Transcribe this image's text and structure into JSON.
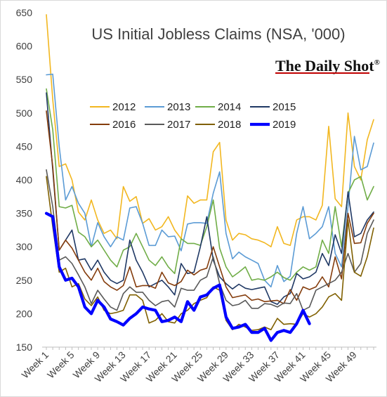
{
  "chart_data": {
    "type": "line",
    "title": "US Initial Jobless Claims (NSA, '000)",
    "brand": "The Daily Shot",
    "brand_mark": "®",
    "xlabel": "",
    "ylabel": "",
    "ylim": [
      150,
      650
    ],
    "y_ticks": [
      150,
      200,
      250,
      300,
      350,
      400,
      450,
      500,
      550,
      600,
      650
    ],
    "x_tick_labels": [
      "Week 1",
      "Week 5",
      "Week 9",
      "Week 13",
      "Week 17",
      "Week 21",
      "Week 25",
      "Week 29",
      "Week 33",
      "Week 37",
      "Week 41",
      "Week 45",
      "Week 49"
    ],
    "x_tick_weeks": [
      1,
      5,
      9,
      13,
      17,
      21,
      25,
      29,
      33,
      37,
      41,
      45,
      49
    ],
    "weeks": 52,
    "grid": false,
    "legend_placement": "top-center",
    "series": [
      {
        "name": "2012",
        "color": "#f2b720",
        "width": 1.6,
        "values": [
          647,
          520,
          420,
          424,
          400,
          352,
          340,
          370,
          340,
          320,
          325,
          312,
          390,
          368,
          375,
          335,
          342,
          325,
          330,
          345,
          325,
          312,
          376,
          365,
          370,
          370,
          442,
          456,
          340,
          310,
          320,
          318,
          312,
          310,
          306,
          300,
          330,
          305,
          302,
          340,
          345,
          345,
          340,
          362,
          480,
          372,
          360,
          500,
          420,
          400,
          460,
          490
        ]
      },
      {
        "name": "2013",
        "color": "#5b9bd5",
        "width": 1.6,
        "values": [
          557,
          558,
          450,
          370,
          390,
          365,
          350,
          300,
          336,
          315,
          300,
          315,
          310,
          358,
          360,
          335,
          302,
          302,
          325,
          315,
          316,
          294,
          334,
          336,
          336,
          335,
          380,
          412,
          320,
          282,
          292,
          285,
          280,
          275,
          250,
          240,
          272,
          248,
          256,
          320,
          360,
          312,
          320,
          330,
          360,
          290,
          270,
          360,
          465,
          415,
          420,
          455
        ]
      },
      {
        "name": "2014",
        "color": "#70ad47",
        "width": 1.6,
        "values": [
          536,
          475,
          360,
          358,
          362,
          322,
          315,
          300,
          310,
          295,
          280,
          270,
          295,
          300,
          320,
          300,
          280,
          272,
          285,
          270,
          260,
          312,
          305,
          305,
          302,
          330,
          370,
          298,
          270,
          255,
          262,
          270,
          250,
          252,
          250,
          255,
          262,
          254,
          250,
          262,
          270,
          265,
          270,
          310,
          290,
          360,
          300,
          380,
          400,
          405,
          370,
          390
        ]
      },
      {
        "name": "2015",
        "color": "#1f3864",
        "width": 1.6,
        "values": [
          530,
          415,
          295,
          310,
          325,
          280,
          282,
          265,
          280,
          262,
          250,
          245,
          250,
          310,
          280,
          262,
          240,
          245,
          250,
          240,
          228,
          275,
          260,
          262,
          300,
          345,
          280,
          255,
          245,
          237,
          244,
          238,
          236,
          238,
          240,
          218,
          214,
          225,
          230,
          260,
          252,
          255,
          262,
          290,
          272,
          318,
          290,
          382,
          315,
          320,
          340,
          352
        ]
      },
      {
        "name": "2016",
        "color": "#843c0c",
        "width": 1.6,
        "values": [
          503,
          420,
          295,
          310,
          298,
          280,
          262,
          250,
          268,
          248,
          240,
          235,
          242,
          270,
          240,
          242,
          242,
          238,
          262,
          246,
          242,
          248,
          265,
          258,
          265,
          268,
          300,
          270,
          240,
          224,
          226,
          228,
          220,
          222,
          218,
          219,
          220,
          215,
          236,
          220,
          240,
          236,
          240,
          255,
          240,
          285,
          252,
          350,
          305,
          306,
          335,
          350
        ]
      },
      {
        "name": "2017",
        "color": "#595959",
        "width": 1.6,
        "values": [
          415,
          360,
          280,
          285,
          275,
          258,
          240,
          215,
          235,
          222,
          210,
          205,
          230,
          240,
          232,
          232,
          220,
          212,
          218,
          220,
          210,
          238,
          235,
          235,
          250,
          255,
          285,
          245,
          220,
          212,
          214,
          220,
          208,
          208,
          215,
          214,
          210,
          216,
          215,
          230,
          205,
          210,
          235,
          240,
          245,
          250,
          262,
          290,
          262,
          275,
          320,
          340
        ]
      },
      {
        "name": "2018",
        "color": "#806000",
        "width": 1.6,
        "values": [
          405,
          330,
          262,
          268,
          240,
          245,
          222,
          212,
          225,
          205,
          200,
          202,
          205,
          228,
          228,
          220,
          186,
          190,
          200,
          188,
          186,
          200,
          205,
          215,
          220,
          224,
          240,
          235,
          190,
          176,
          184,
          180,
          175,
          176,
          180,
          176,
          193,
          184,
          185,
          184,
          200,
          195,
          200,
          210,
          225,
          230,
          220,
          340,
          262,
          256,
          285,
          328
        ]
      },
      {
        "name": "2019",
        "color": "#0000ff",
        "width": 4.2,
        "values": [
          350,
          345,
          270,
          250,
          253,
          240,
          210,
          200,
          220,
          210,
          192,
          188,
          183,
          193,
          200,
          210,
          207,
          205,
          188,
          190,
          195,
          188,
          218,
          205,
          225,
          228,
          238,
          243,
          195,
          178,
          180,
          184,
          172,
          172,
          178,
          160,
          172,
          175,
          172,
          185,
          205,
          185
        ]
      }
    ]
  }
}
